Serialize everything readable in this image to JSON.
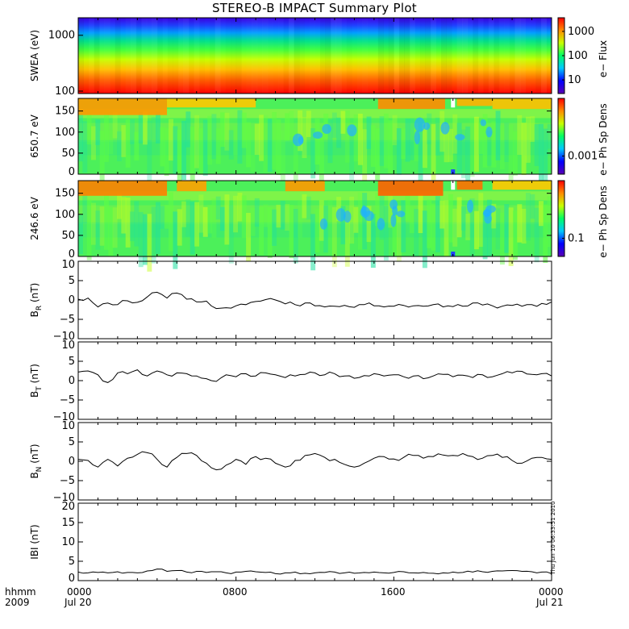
{
  "title": "STEREO-B IMPACT Summary Plot",
  "x_axis": {
    "label_top": "hhmm",
    "label_bottom": "2009",
    "ticks": [
      {
        "top": "0000",
        "bottom": "Jul 20"
      },
      {
        "top": "0800",
        "bottom": ""
      },
      {
        "top": "1600",
        "bottom": ""
      },
      {
        "top": "0000",
        "bottom": "Jul 21"
      }
    ]
  },
  "timestamp": "Thu Jun 10 06:33:51 2010",
  "colors": {
    "line": "#000000",
    "colormap": [
      "#5a00b4",
      "#0000ff",
      "#00c8ff",
      "#00ff64",
      "#c8ff00",
      "#ff8c00",
      "#ff0000"
    ]
  },
  "chart_data": [
    {
      "type": "heatmap",
      "ylabel": "SWEA (eV)",
      "yscale": "log",
      "ylim": [
        100,
        2000
      ],
      "yticks": [
        "100",
        "1000"
      ],
      "colorbar": {
        "label": "e− Flux",
        "ticks": [
          "10",
          "100",
          "1000"
        ]
      },
      "description_values": {
        "low_energy_level": "high",
        "high_energy_level": "low"
      }
    },
    {
      "type": "heatmap",
      "ylabel": "650.7 eV",
      "ylim": [
        0,
        180
      ],
      "yticks": [
        "0",
        "50",
        "100",
        "150"
      ],
      "colorbar": {
        "label": "e− Ph Sp Dens",
        "ticks": [
          "0.001"
        ]
      }
    },
    {
      "type": "heatmap",
      "ylabel": "246.6 eV",
      "ylim": [
        0,
        180
      ],
      "yticks": [
        "0",
        "50",
        "100",
        "150"
      ],
      "colorbar": {
        "label": "e− Ph Sp Dens",
        "ticks": [
          "0.1"
        ]
      }
    },
    {
      "type": "line",
      "ylabel": "B_R (nT)",
      "ylabel_main": "B",
      "ylabel_sub": "R",
      "ylabel_unit": "(nT)",
      "ylim": [
        -10,
        10
      ],
      "yticks": [
        "−10",
        "−5",
        "0",
        "5",
        "10"
      ],
      "x_hours": [
        0,
        0.5,
        1,
        1.5,
        2,
        2.5,
        3,
        3.5,
        4,
        4.5,
        5,
        5.5,
        6,
        6.5,
        7,
        7.5,
        8,
        8.5,
        9,
        9.5,
        10,
        10.5,
        11,
        11.5,
        12,
        12.5,
        13,
        13.5,
        14,
        14.5,
        15,
        15.5,
        16,
        16.5,
        17,
        17.5,
        18,
        18.5,
        19,
        19.5,
        20,
        20.5,
        21,
        21.5,
        22,
        22.5,
        23,
        23.5,
        24
      ],
      "values": [
        0.2,
        0.5,
        -1.8,
        -0.8,
        -1.2,
        -0.2,
        -0.6,
        0.8,
        2.0,
        0.5,
        1.8,
        0.2,
        -0.5,
        -0.3,
        -2.2,
        -2.0,
        -1.5,
        -1.2,
        -0.4,
        0.1,
        0.0,
        -1.0,
        -1.2,
        -0.8,
        -1.5,
        -1.8,
        -1.6,
        -1.4,
        -1.9,
        -1.2,
        -1.5,
        -1.8,
        -1.6,
        -1.4,
        -1.5,
        -1.6,
        -1.2,
        -1.8,
        -1.7,
        -1.6,
        -0.8,
        -1.3,
        -1.5,
        -1.6,
        -1.4,
        -1.6,
        -1.2,
        -0.9,
        -0.5
      ]
    },
    {
      "type": "line",
      "ylabel": "B_T (nT)",
      "ylabel_main": "B",
      "ylabel_sub": "T",
      "ylabel_unit": "(nT)",
      "ylim": [
        -10,
        10
      ],
      "yticks": [
        "−10",
        "−5",
        "0",
        "5",
        "10"
      ],
      "x_hours": [
        0,
        0.5,
        1,
        1.5,
        2,
        2.5,
        3,
        3.5,
        4,
        4.5,
        5,
        5.5,
        6,
        6.5,
        7,
        7.5,
        8,
        8.5,
        9,
        9.5,
        10,
        10.5,
        11,
        11.5,
        12,
        12.5,
        13,
        13.5,
        14,
        14.5,
        15,
        15.5,
        16,
        16.5,
        17,
        17.5,
        18,
        18.5,
        19,
        19.5,
        20,
        20.5,
        21,
        21.5,
        22,
        22.5,
        23,
        23.5,
        24
      ],
      "values": [
        2.2,
        2.5,
        1.5,
        -0.5,
        2.0,
        1.8,
        2.8,
        1.2,
        2.5,
        1.5,
        2.0,
        1.8,
        1.2,
        0.5,
        -0.2,
        1.5,
        1.0,
        1.8,
        1.2,
        2.0,
        1.5,
        0.8,
        1.2,
        1.6,
        2.0,
        1.5,
        1.8,
        1.2,
        0.6,
        1.3,
        1.8,
        1.2,
        1.5,
        1.0,
        1.2,
        0.5,
        1.2,
        1.6,
        1.0,
        1.4,
        0.8,
        1.5,
        1.0,
        1.8,
        2.0,
        2.4,
        1.6,
        1.8,
        1.2
      ]
    },
    {
      "type": "line",
      "ylabel": "B_N (nT)",
      "ylabel_main": "B",
      "ylabel_sub": "N",
      "ylabel_unit": "(nT)",
      "ylim": [
        -10,
        10
      ],
      "yticks": [
        "−10",
        "−5",
        "0",
        "5",
        "10"
      ],
      "x_hours": [
        0,
        0.5,
        1,
        1.5,
        2,
        2.5,
        3,
        3.5,
        4,
        4.5,
        5,
        5.5,
        6,
        6.5,
        7,
        7.5,
        8,
        8.5,
        9,
        9.5,
        10,
        10.5,
        11,
        11.5,
        12,
        12.5,
        13,
        13.5,
        14,
        14.5,
        15,
        15.5,
        16,
        16.5,
        17,
        17.5,
        18,
        18.5,
        19,
        19.5,
        20,
        20.5,
        21,
        21.5,
        22,
        22.5,
        23,
        23.5,
        24
      ],
      "values": [
        0.5,
        0.2,
        -1.5,
        0.5,
        -1.2,
        0.8,
        1.8,
        2.2,
        0.5,
        -1.5,
        1.0,
        2.0,
        1.5,
        -0.5,
        -2.2,
        -1.0,
        0.5,
        -0.8,
        1.2,
        0.8,
        -0.5,
        -1.5,
        0.2,
        1.5,
        2.0,
        1.0,
        0.5,
        -0.8,
        -1.5,
        -0.5,
        0.8,
        1.2,
        0.6,
        1.0,
        1.5,
        0.8,
        1.2,
        1.6,
        1.5,
        2.0,
        1.2,
        0.8,
        1.5,
        1.0,
        0.2,
        -0.5,
        0.8,
        1.0,
        0.5
      ]
    },
    {
      "type": "line",
      "ylabel": "|B| (nT)",
      "ylabel_main": "IBI",
      "ylabel_sub": "",
      "ylabel_unit": "(nT)",
      "ylim": [
        0,
        20
      ],
      "yticks": [
        "0",
        "5",
        "10",
        "15",
        "20"
      ],
      "x_hours": [
        0,
        0.5,
        1,
        1.5,
        2,
        2.5,
        3,
        3.5,
        4,
        4.5,
        5,
        5.5,
        6,
        6.5,
        7,
        7.5,
        8,
        8.5,
        9,
        9.5,
        10,
        10.5,
        11,
        11.5,
        12,
        12.5,
        13,
        13.5,
        14,
        14.5,
        15,
        15.5,
        16,
        16.5,
        17,
        17.5,
        18,
        18.5,
        19,
        19.5,
        20,
        20.5,
        21,
        21.5,
        22,
        22.5,
        23,
        23.5,
        24
      ],
      "values": [
        2.2,
        2.0,
        2.1,
        2.0,
        2.3,
        2.1,
        2.0,
        2.5,
        3.0,
        2.4,
        2.6,
        2.2,
        2.4,
        2.1,
        2.3,
        2.0,
        2.2,
        2.4,
        2.3,
        2.1,
        1.8,
        2.0,
        2.2,
        1.9,
        2.0,
        2.1,
        2.2,
        2.0,
        1.9,
        2.1,
        2.2,
        2.0,
        2.1,
        2.3,
        2.0,
        2.1,
        1.9,
        2.0,
        2.2,
        2.1,
        2.2,
        2.3,
        2.4,
        2.5,
        2.6,
        2.4,
        2.3,
        2.2,
        1.8
      ]
    }
  ]
}
